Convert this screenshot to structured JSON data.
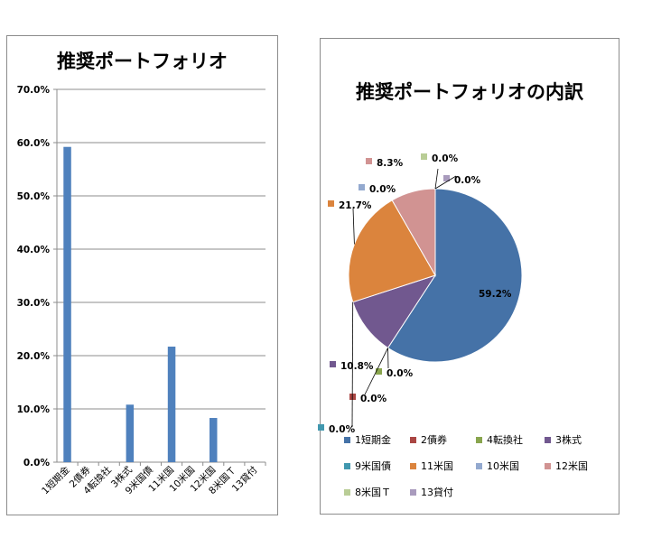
{
  "charts": {
    "bar": {
      "title": "推奨ポートフォリオ",
      "ytick_labels": [
        "0.0%",
        "10.0%",
        "20.0%",
        "30.0%",
        "40.0%",
        "50.0%",
        "60.0%",
        "70.0%"
      ],
      "bar_color": "#4F81BD"
    },
    "pie": {
      "title": "推奨ポートフォリオの内訳"
    }
  },
  "chart_data": [
    {
      "type": "bar",
      "title": "推奨ポートフォリオ",
      "categories": [
        "1短期金",
        "2債券",
        "4転換社",
        "3株式",
        "9米国債",
        "11米国",
        "10米国",
        "12米国",
        "8米国Ｔ",
        "13貸付"
      ],
      "values": [
        59.2,
        0.0,
        0.0,
        10.8,
        0.0,
        21.7,
        0.0,
        8.3,
        0.0,
        0.0
      ],
      "ylim": [
        0,
        70
      ],
      "unit": "%",
      "grid": true
    },
    {
      "type": "pie",
      "title": "推奨ポートフォリオの内訳",
      "labels": [
        "1短期金",
        "2債券",
        "4転換社",
        "3株式",
        "9米国債",
        "11米国",
        "10米国",
        "12米国",
        "8米国Ｔ",
        "13貸付"
      ],
      "values": [
        59.2,
        0.0,
        0.0,
        10.8,
        0.0,
        21.7,
        0.0,
        8.3,
        0.0,
        0.0
      ],
      "data_labels": [
        "59.2%",
        "0.0%",
        "0.0%",
        "10.8%",
        "0.0%",
        "21.7%",
        "0.0%",
        "8.3%",
        "0.0%",
        "0.0%"
      ],
      "colors": [
        "#4572A7",
        "#AA4643",
        "#89A54E",
        "#71588F",
        "#4198AF",
        "#DB843D",
        "#93A9CF",
        "#D19392",
        "#B9CD96",
        "#A99BBD"
      ],
      "legend_position": "bottom"
    }
  ]
}
